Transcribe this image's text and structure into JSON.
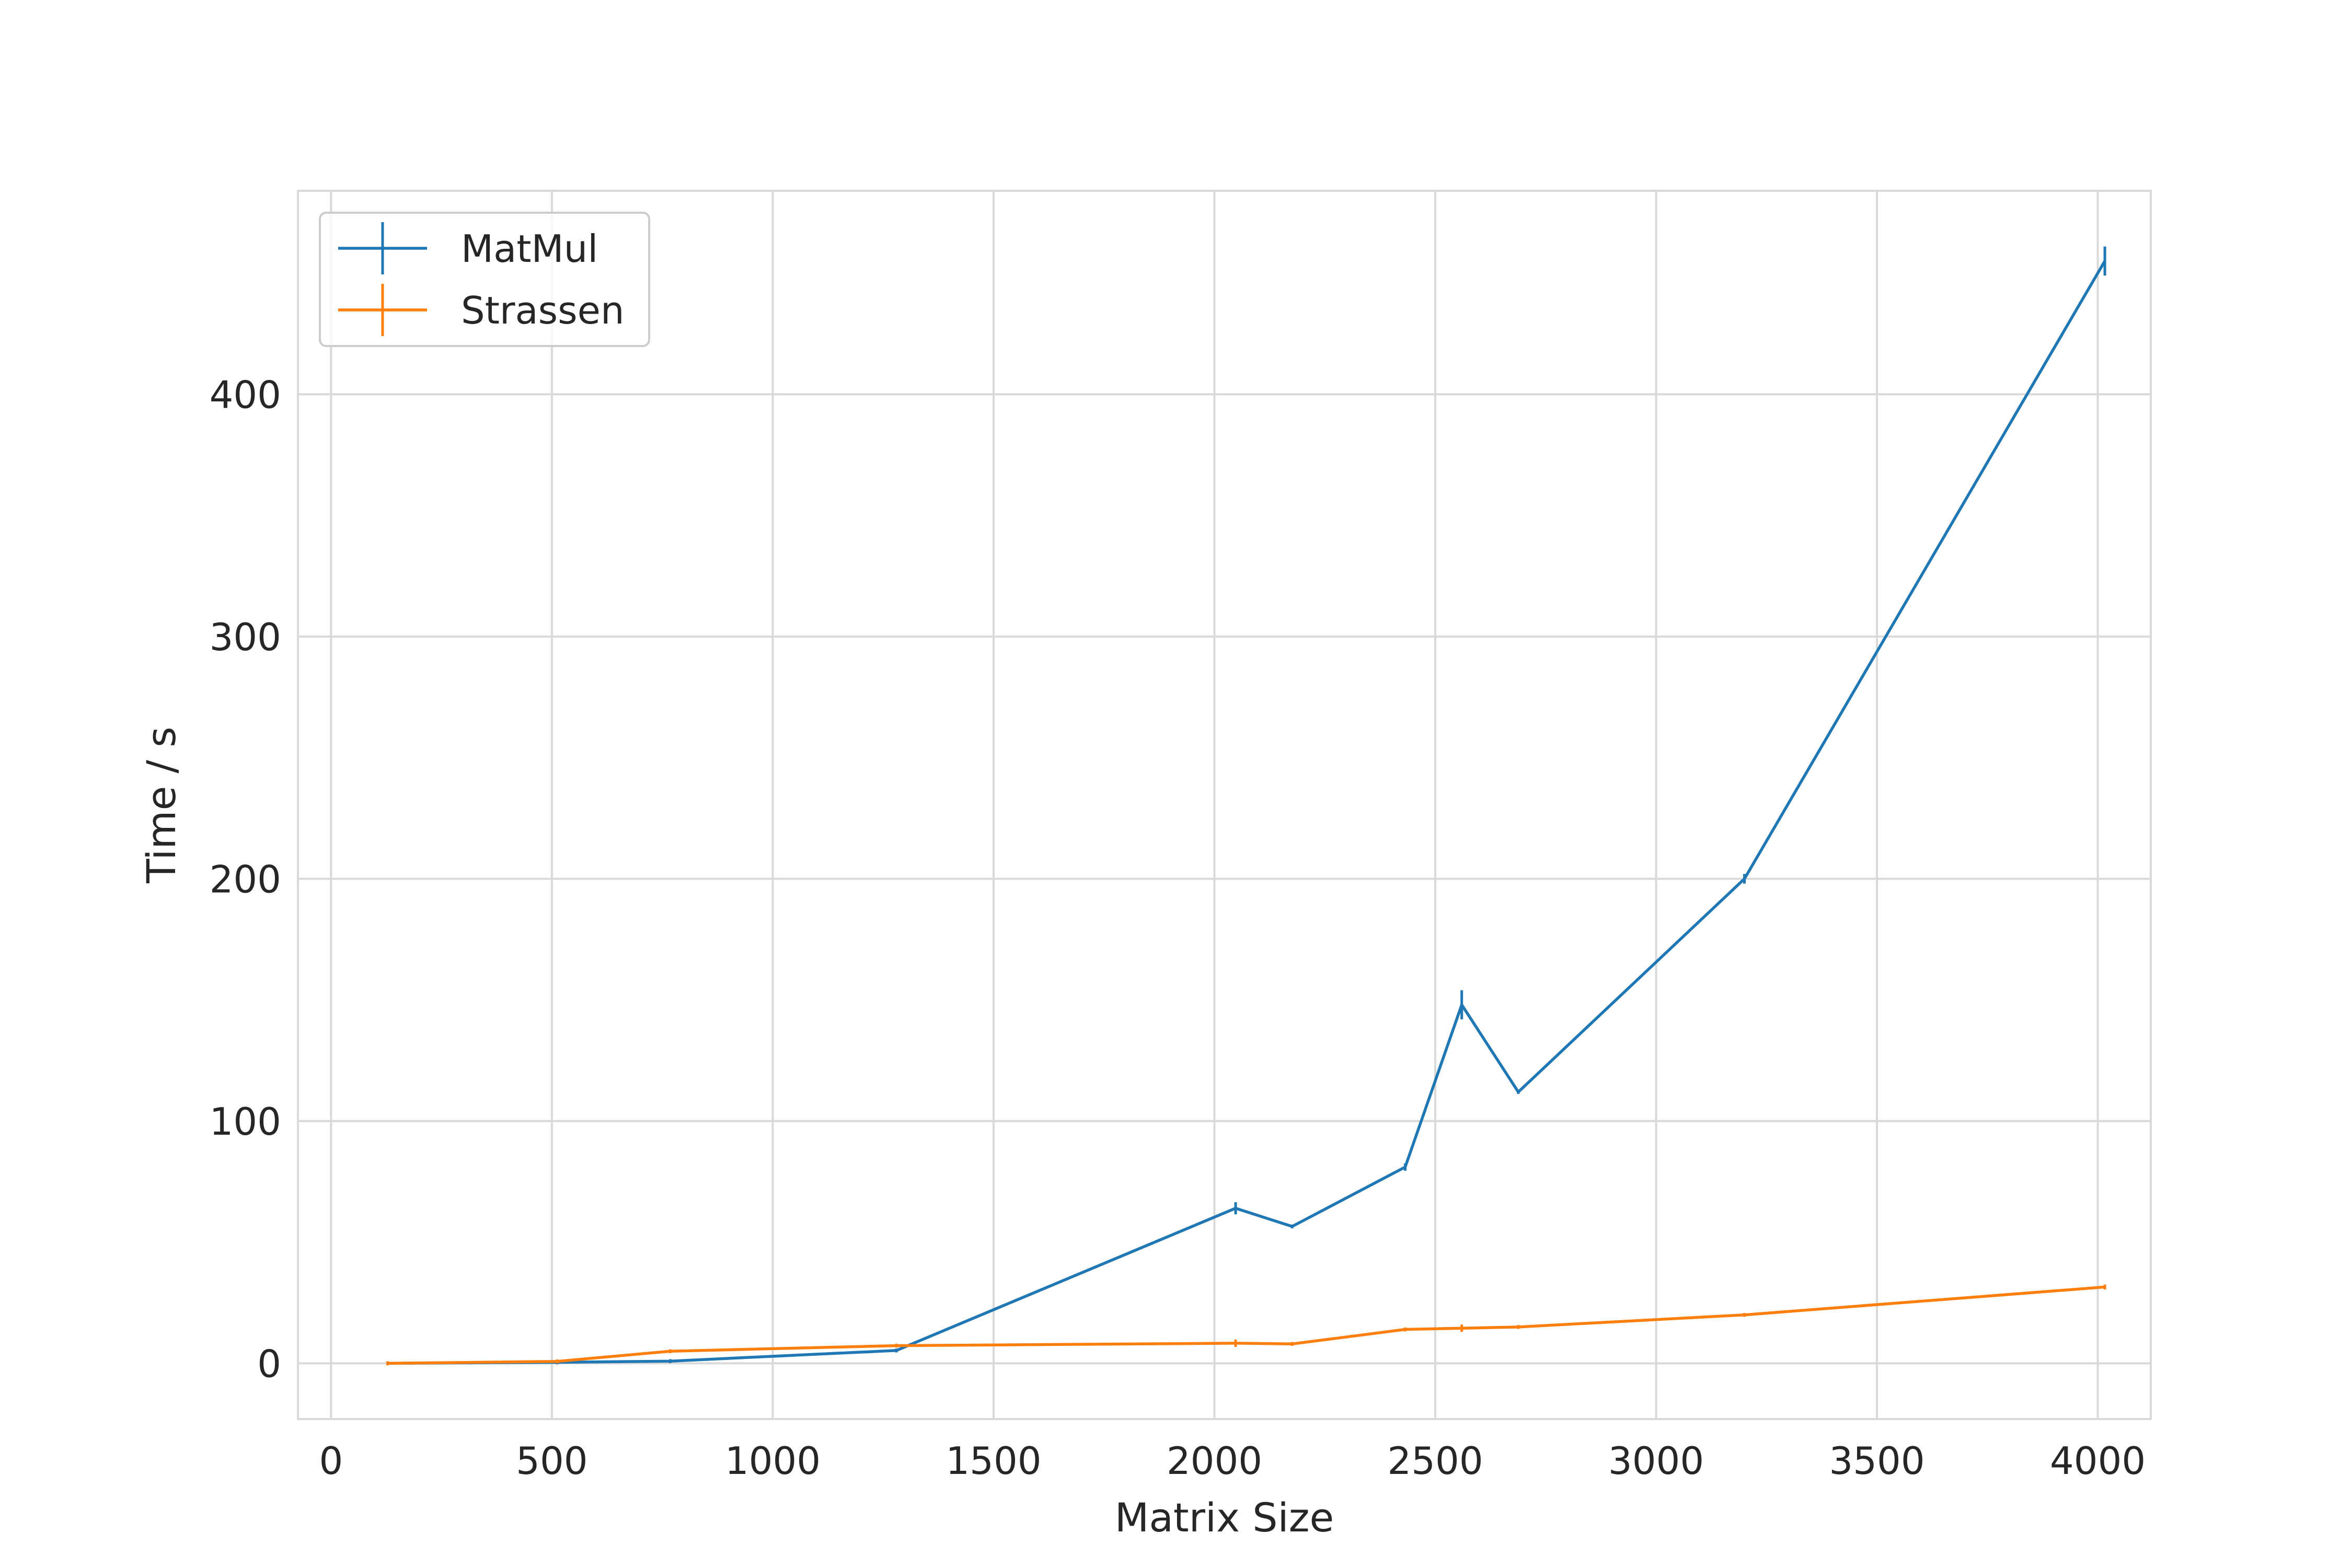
{
  "chart_data": {
    "type": "line",
    "title": "",
    "xlabel": "Matrix Size",
    "ylabel": "Time / s",
    "xlim": [
      -75,
      4120
    ],
    "ylim": [
      -23,
      484
    ],
    "xticks": [
      0,
      500,
      1000,
      1500,
      2000,
      2500,
      3000,
      3500,
      4000
    ],
    "yticks": [
      0,
      100,
      200,
      300,
      400
    ],
    "grid": true,
    "legend": {
      "position": "top-left",
      "style": "errorbar"
    },
    "series": [
      {
        "name": "MatMul",
        "color": "#1f77b4",
        "points": [
          {
            "x": 128,
            "y": 0,
            "err": 0
          },
          {
            "x": 512,
            "y": 0.4,
            "err": 0
          },
          {
            "x": 768,
            "y": 0.9,
            "err": 0
          },
          {
            "x": 1280,
            "y": 5.3,
            "err": 0.5
          },
          {
            "x": 2048,
            "y": 64,
            "err": 2.5
          },
          {
            "x": 2176,
            "y": 56.5,
            "err": 0.5
          },
          {
            "x": 2432,
            "y": 81,
            "err": 1.5
          },
          {
            "x": 2560,
            "y": 148,
            "err": 6
          },
          {
            "x": 2688,
            "y": 112,
            "err": 0.5
          },
          {
            "x": 3200,
            "y": 200,
            "err": 2
          },
          {
            "x": 4016,
            "y": 455,
            "err": 6
          }
        ]
      },
      {
        "name": "Strassen",
        "color": "#ff7f0e",
        "points": [
          {
            "x": 128,
            "y": 0,
            "err": 0
          },
          {
            "x": 512,
            "y": 0.8,
            "err": 0
          },
          {
            "x": 768,
            "y": 5,
            "err": 0.5
          },
          {
            "x": 1280,
            "y": 7.3,
            "err": 0.5
          },
          {
            "x": 2048,
            "y": 8.3,
            "err": 1.5
          },
          {
            "x": 2176,
            "y": 8,
            "err": 0.5
          },
          {
            "x": 2432,
            "y": 14,
            "err": 0.5
          },
          {
            "x": 2560,
            "y": 14.5,
            "err": 1.5
          },
          {
            "x": 2688,
            "y": 15,
            "err": 0.3
          },
          {
            "x": 3200,
            "y": 20,
            "err": 0.5
          },
          {
            "x": 4016,
            "y": 31.5,
            "err": 1
          }
        ]
      }
    ]
  }
}
